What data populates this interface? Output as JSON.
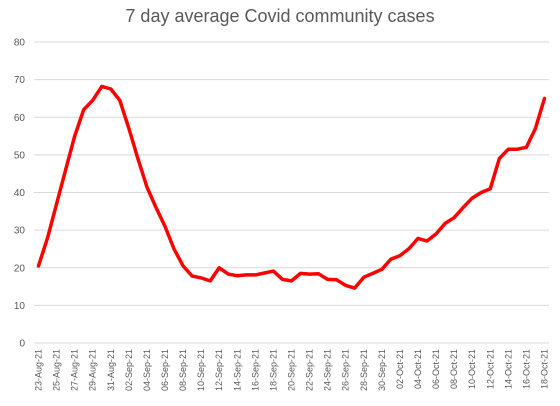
{
  "chart_data": {
    "type": "line",
    "title": "7 day average Covid community cases",
    "xlabel": "",
    "ylabel": "",
    "ylim": [
      0,
      80
    ],
    "yticks": [
      0,
      10,
      20,
      30,
      40,
      50,
      60,
      70,
      80
    ],
    "grid": true,
    "legend": "none",
    "line_color": "#ff0000",
    "x_tick_labels": [
      "23-Aug-21",
      "25-Aug-21",
      "27-Aug-21",
      "29-Aug-21",
      "31-Aug-21",
      "02-Sep-21",
      "04-Sep-21",
      "06-Sep-21",
      "08-Sep-21",
      "10-Sep-21",
      "12-Sep-21",
      "14-Sep-21",
      "16-Sep-21",
      "18-Sep-21",
      "20-Sep-21",
      "22-Sep-21",
      "24-Sep-21",
      "26-Sep-21",
      "28-Sep-21",
      "30-Sep-21",
      "02-Oct-21",
      "04-Oct-21",
      "06-Oct-21",
      "08-Oct-21",
      "10-Oct-21",
      "12-Oct-21",
      "14-Oct-21",
      "16-Oct-21",
      "18-Oct-21"
    ],
    "series": [
      {
        "x": [
          "23-Aug-21",
          "24-Aug-21",
          "25-Aug-21",
          "26-Aug-21",
          "27-Aug-21",
          "28-Aug-21",
          "29-Aug-21",
          "30-Aug-21",
          "31-Aug-21",
          "01-Sep-21",
          "02-Sep-21",
          "03-Sep-21",
          "04-Sep-21",
          "05-Sep-21",
          "06-Sep-21",
          "07-Sep-21",
          "08-Sep-21",
          "09-Sep-21",
          "10-Sep-21",
          "11-Sep-21",
          "12-Sep-21",
          "13-Sep-21",
          "14-Sep-21",
          "15-Sep-21",
          "16-Sep-21",
          "17-Sep-21",
          "18-Sep-21",
          "19-Sep-21",
          "20-Sep-21",
          "21-Sep-21",
          "22-Sep-21",
          "23-Sep-21",
          "24-Sep-21",
          "25-Sep-21",
          "26-Sep-21",
          "27-Sep-21",
          "28-Sep-21",
          "29-Sep-21",
          "30-Sep-21",
          "01-Oct-21",
          "02-Oct-21",
          "03-Oct-21",
          "04-Oct-21",
          "05-Oct-21",
          "06-Oct-21",
          "07-Oct-21",
          "08-Oct-21",
          "09-Oct-21",
          "10-Oct-21",
          "11-Oct-21",
          "12-Oct-21",
          "13-Oct-21",
          "14-Oct-21",
          "15-Oct-21",
          "16-Oct-21",
          "17-Oct-21",
          "18-Oct-21"
        ],
        "values": [
          20.5,
          28,
          37,
          46,
          55,
          62,
          64.5,
          68.2,
          67.5,
          64.5,
          57,
          49,
          41.5,
          36,
          31,
          25,
          20.5,
          17.8,
          17.3,
          16.5,
          20,
          18.3,
          17.9,
          18.1,
          18.1,
          18.6,
          19.1,
          16.9,
          16.5,
          18.5,
          18.3,
          18.4,
          16.9,
          16.8,
          15.3,
          14.6,
          17.5,
          18.5,
          19.6,
          22.3,
          23.2,
          25.1,
          27.8,
          27.1,
          29,
          31.8,
          33.3,
          36,
          38.5,
          40,
          41,
          49,
          51.5,
          51.5,
          52,
          57,
          65
        ]
      }
    ]
  }
}
